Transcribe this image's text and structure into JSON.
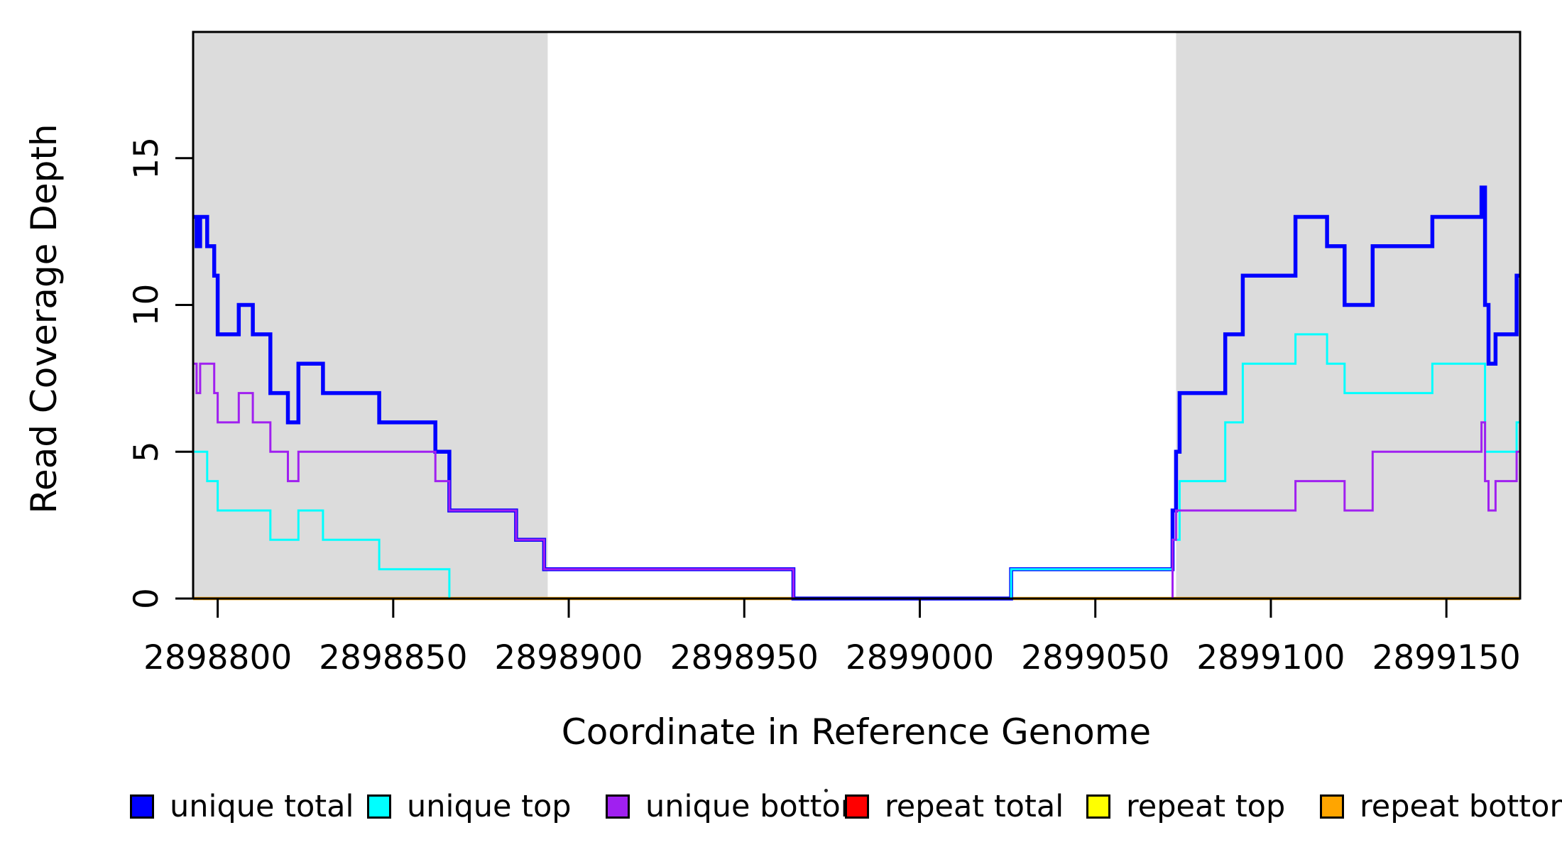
{
  "figure": {
    "background": "#FFFFFF",
    "plot_border_color": "#000000",
    "shade_color": "#DCDCDC"
  },
  "axes": {
    "x_label": "Coordinate in Reference Genome",
    "y_label": "Read Coverage Depth",
    "x_tick_labels": [
      "2898800",
      "2898850",
      "2898900",
      "2898950",
      "2899000",
      "2899050",
      "2899100",
      "2899150"
    ],
    "y_tick_labels": [
      "0",
      "5",
      "10",
      "15"
    ]
  },
  "legend": {
    "items": [
      {
        "label": "unique total",
        "color": "#0000FF"
      },
      {
        "label": "unique top",
        "color": "#00FFFF"
      },
      {
        "label": "unique bottom",
        "color": "#A020F0"
      },
      {
        "label": "repeat total",
        "color": "#FF0000"
      },
      {
        "label": "repeat top",
        "color": "#FFFF00"
      },
      {
        "label": "repeat bottom",
        "color": "#FFA500"
      }
    ]
  },
  "chart_data": {
    "type": "line",
    "subtype": "step-post",
    "title": "",
    "xlabel": "Coordinate in Reference Genome",
    "ylabel": "Read Coverage Depth",
    "xlim": [
      2898793,
      2899171
    ],
    "ylim": [
      0,
      19.3
    ],
    "x_ticks": [
      2898800,
      2898850,
      2898900,
      2898950,
      2899000,
      2899050,
      2899100,
      2899150
    ],
    "y_ticks": [
      0,
      5,
      10,
      15
    ],
    "grid": false,
    "legend_position": "bottom",
    "shaded_regions": [
      {
        "name": "left-alignment-shade",
        "x0": 2898793,
        "x1": 2898894,
        "color": "#DCDCDC"
      },
      {
        "name": "right-alignment-shade",
        "x0": 2899073,
        "x1": 2899171,
        "color": "#DCDCDC"
      }
    ],
    "draw_order": [
      "repeat total",
      "repeat top",
      "repeat bottom",
      "unique total",
      "unique top",
      "unique bottom"
    ],
    "series": [
      {
        "name": "unique total",
        "color": "#0000FF",
        "line_width": 5.5,
        "points": [
          [
            2898793,
            13
          ],
          [
            2898794,
            12
          ],
          [
            2898795,
            13
          ],
          [
            2898797,
            12
          ],
          [
            2898799,
            11
          ],
          [
            2898800,
            9
          ],
          [
            2898806,
            10
          ],
          [
            2898810,
            9
          ],
          [
            2898815,
            7
          ],
          [
            2898820,
            6
          ],
          [
            2898823,
            8
          ],
          [
            2898830,
            7
          ],
          [
            2898846,
            6
          ],
          [
            2898862,
            5
          ],
          [
            2898866,
            3
          ],
          [
            2898885,
            2
          ],
          [
            2898893,
            1
          ],
          [
            2898964,
            0
          ],
          [
            2899026,
            1
          ],
          [
            2899072,
            3
          ],
          [
            2899073,
            5
          ],
          [
            2899074,
            7
          ],
          [
            2899087,
            9
          ],
          [
            2899092,
            11
          ],
          [
            2899107,
            13
          ],
          [
            2899116,
            12
          ],
          [
            2899121,
            10
          ],
          [
            2899129,
            12
          ],
          [
            2899146,
            13
          ],
          [
            2899160,
            14
          ],
          [
            2899161,
            10
          ],
          [
            2899162,
            8
          ],
          [
            2899164,
            9
          ],
          [
            2899170,
            11
          ]
        ]
      },
      {
        "name": "unique top",
        "color": "#00FFFF",
        "line_width": 3,
        "points": [
          [
            2898793,
            5
          ],
          [
            2898797,
            4
          ],
          [
            2898800,
            3
          ],
          [
            2898815,
            2
          ],
          [
            2898823,
            3
          ],
          [
            2898830,
            2
          ],
          [
            2898846,
            1
          ],
          [
            2898866,
            0
          ],
          [
            2899026,
            1
          ],
          [
            2899072,
            2
          ],
          [
            2899074,
            4
          ],
          [
            2899087,
            6
          ],
          [
            2899092,
            8
          ],
          [
            2899107,
            9
          ],
          [
            2899116,
            8
          ],
          [
            2899121,
            7
          ],
          [
            2899146,
            8
          ],
          [
            2899161,
            5
          ],
          [
            2899170,
            6
          ]
        ]
      },
      {
        "name": "unique bottom",
        "color": "#A020F0",
        "line_width": 3,
        "points": [
          [
            2898793,
            8
          ],
          [
            2898794,
            7
          ],
          [
            2898795,
            8
          ],
          [
            2898799,
            7
          ],
          [
            2898800,
            6
          ],
          [
            2898806,
            7
          ],
          [
            2898810,
            6
          ],
          [
            2898815,
            5
          ],
          [
            2898820,
            4
          ],
          [
            2898823,
            5
          ],
          [
            2898862,
            4
          ],
          [
            2898866,
            3
          ],
          [
            2898885,
            2
          ],
          [
            2898893,
            1
          ],
          [
            2898964,
            0
          ],
          [
            2899072,
            2
          ],
          [
            2899073,
            3
          ],
          [
            2899107,
            4
          ],
          [
            2899121,
            3
          ],
          [
            2899129,
            5
          ],
          [
            2899160,
            6
          ],
          [
            2899161,
            4
          ],
          [
            2899162,
            3
          ],
          [
            2899164,
            4
          ],
          [
            2899170,
            5
          ]
        ]
      },
      {
        "name": "repeat total",
        "color": "#FF0000",
        "line_width": 3,
        "points": [
          [
            2898793,
            0
          ]
        ]
      },
      {
        "name": "repeat top",
        "color": "#FFFF00",
        "line_width": 3,
        "points": [
          [
            2898793,
            0
          ]
        ]
      },
      {
        "name": "repeat bottom",
        "color": "#FFA500",
        "line_width": 4.5,
        "points": [
          [
            2898793,
            0
          ]
        ]
      }
    ]
  }
}
